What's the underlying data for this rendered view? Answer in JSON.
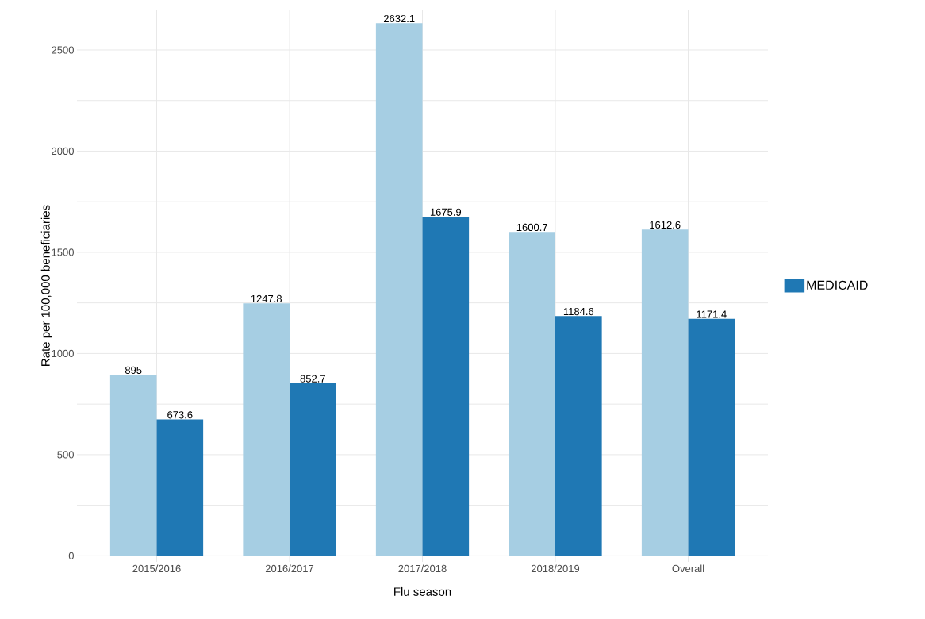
{
  "chart_data": {
    "type": "bar",
    "xlabel": "Flu season",
    "ylabel": "Rate per 100,000 beneficiaries",
    "categories": [
      "2015/2016",
      "2016/2017",
      "2017/2018",
      "2018/2019",
      "Overall"
    ],
    "series": [
      {
        "color": "#a6cee3",
        "values": [
          895,
          1247.8,
          2632.1,
          1600.7,
          1612.6
        ]
      },
      {
        "name": "MEDICAID",
        "color": "#1f78b4",
        "values": [
          673.6,
          852.7,
          1675.9,
          1184.6,
          1171.4
        ]
      }
    ],
    "ylim": [
      -30,
      2700
    ],
    "yticks": [
      0,
      {
        "value": 250,
        "label": null
      },
      500,
      {
        "value": 750,
        "label": null
      },
      1000,
      {
        "value": 1250,
        "label": null
      },
      1500,
      {
        "value": 1750,
        "label": null
      },
      2000,
      {
        "value": 2250,
        "label": null
      },
      2500
    ],
    "grid": true,
    "legend": "right",
    "data_labels": true
  }
}
